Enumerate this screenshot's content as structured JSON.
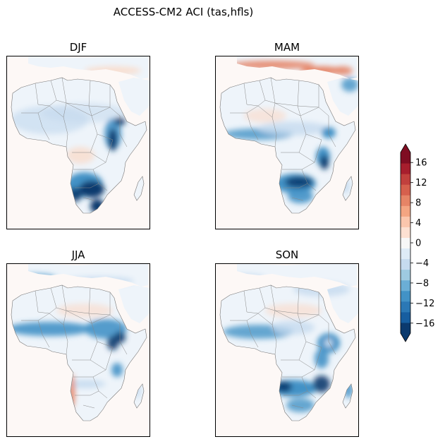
{
  "figure": {
    "title": "ACCESS-CM2 ACI (tas,hfls)"
  },
  "panels": [
    {
      "id": "djf",
      "label": "DJF"
    },
    {
      "id": "mam",
      "label": "MAM"
    },
    {
      "id": "jja",
      "label": "JJA"
    },
    {
      "id": "son",
      "label": "SON"
    }
  ],
  "colorbar": {
    "ticks": [
      "16",
      "12",
      "8",
      "4",
      "0",
      "−4",
      "−8",
      "−12",
      "−16"
    ],
    "range": [
      -18,
      18
    ],
    "extend": "both",
    "colors": [
      "#0b3a6e",
      "#175ea0",
      "#2b78b5",
      "#4292c6",
      "#6baed6",
      "#9ecae1",
      "#c6dbef",
      "#deebf7",
      "#f7f7f7",
      "#fde0d2",
      "#fbc6ad",
      "#f4a582",
      "#e68466",
      "#d6604d",
      "#c1403d",
      "#a71e2d",
      "#7f0d22"
    ]
  },
  "colors": {
    "land_neutral": "#fdf8f6",
    "border": "#888888",
    "strong_neg": "#0b3a6e",
    "mod_neg": "#4292c6",
    "weak_neg": "#c6dbef",
    "weak_pos": "#fbd9c6",
    "mod_pos": "#e68466"
  }
}
